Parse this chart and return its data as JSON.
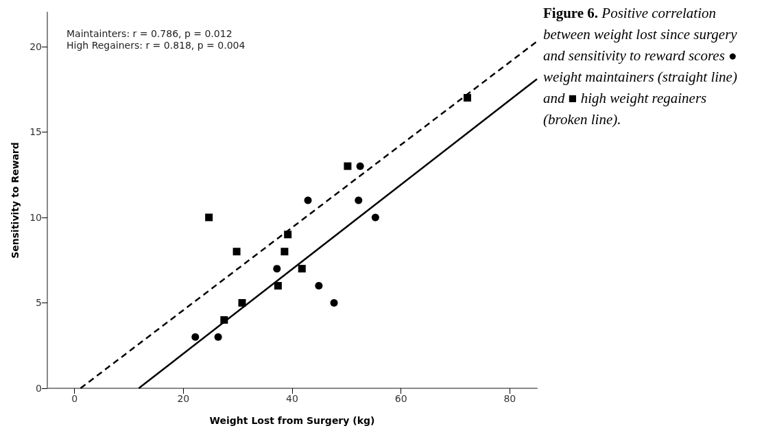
{
  "chart_data": {
    "type": "scatter",
    "title": "Figure 6.",
    "subtitle": "Positive correlation between weight lost since surgery and sensitivity to reward scores ● weight maintainers (straight line) and ■ high weight regainers (broken line).",
    "xlabel": "Weight Lost from Surgery (kg)",
    "ylabel": "Sensitivity to Reward",
    "annotations": [
      "Maintainters: r = 0.786, p = 0.012",
      "High Regainers: r = 0.818, p = 0.004"
    ],
    "xlim": [
      -5,
      85
    ],
    "xticks": [
      0,
      20,
      40,
      60,
      80
    ],
    "ylim": [
      0,
      22
    ],
    "yticks": [
      0,
      5,
      10,
      15,
      20
    ],
    "grid": false,
    "series": [
      {
        "type": "scatter",
        "marker": "circle",
        "color": "#000000",
        "x": [
          22.2,
          26.4,
          37.2,
          42.9,
          44.9,
          47.7,
          52.2,
          52.5,
          55.3
        ],
        "values": [
          3,
          3,
          7,
          11,
          6,
          5,
          11,
          13,
          10
        ]
      },
      {
        "type": "scatter",
        "marker": "square",
        "color": "#000000",
        "x": [
          24.7,
          27.5,
          29.8,
          30.8,
          37.4,
          38.6,
          39.2,
          41.8,
          50.2,
          72.2
        ],
        "values": [
          10,
          4,
          8,
          5,
          6,
          8,
          9,
          7,
          13,
          17
        ]
      },
      {
        "type": "line",
        "line_style": "solid",
        "marker": "none",
        "color": "#000000",
        "x": [
          11.8,
          85
        ],
        "values": [
          0,
          18.1
        ]
      },
      {
        "type": "line",
        "line_style": "dashed",
        "marker": "none",
        "color": "#000000",
        "x": [
          1.1,
          85
        ],
        "values": [
          0,
          20.3
        ]
      }
    ]
  }
}
